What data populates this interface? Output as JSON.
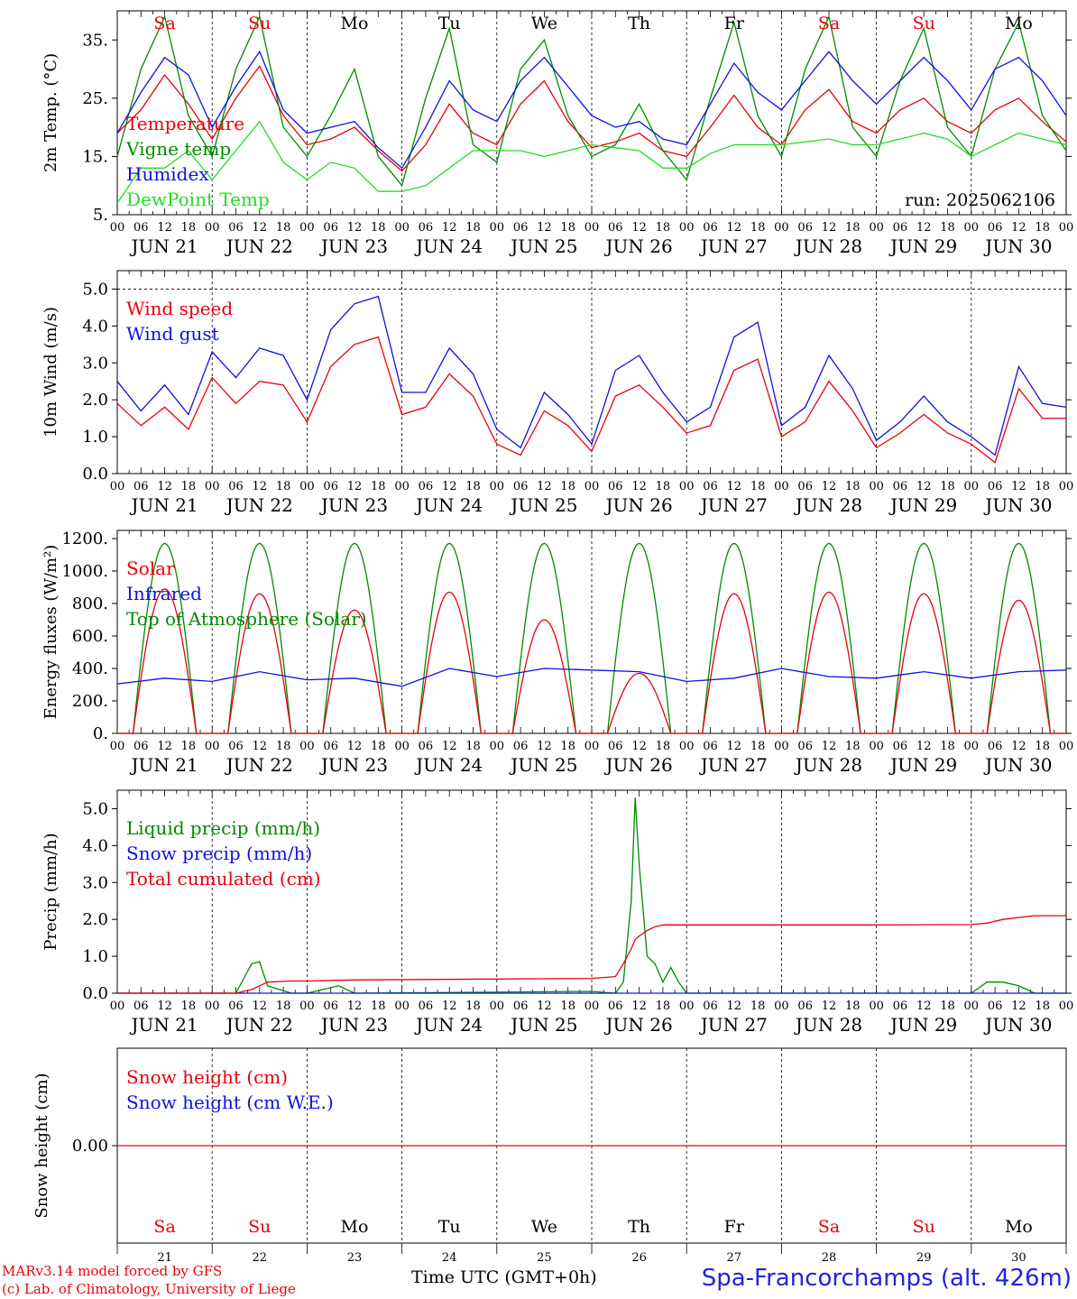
{
  "colors": {
    "red": "#e8000f",
    "green": "#008a00",
    "blue": "#1010e0",
    "lightgreen": "#22dd22",
    "black": "#000000",
    "weekend": "#e8000f"
  },
  "footer": {
    "model": "MARv3.14 model forced by GFS",
    "lab": "(c) Lab. of Climatology, University of Liege",
    "axis_label": "Time UTC (GMT+0h)",
    "station": "Spa-Francorchamps (alt. 426m)"
  },
  "chart_data": [
    {
      "type": "line",
      "ylabel": "2m Temp. (°C)",
      "ylim": [
        5,
        40
      ],
      "yticks": [
        "5.",
        "15.",
        "25.",
        "35."
      ],
      "run_label": "run: 2025062106",
      "x_hours": [
        0,
        6,
        12,
        18,
        24,
        30,
        36,
        42,
        48,
        54,
        60,
        66,
        72,
        78,
        84,
        90,
        96,
        102,
        108,
        114,
        120,
        126,
        132,
        138,
        144,
        150,
        156,
        162,
        168,
        174,
        180,
        186,
        192,
        198,
        204,
        210,
        216,
        222,
        228,
        234,
        240
      ],
      "series": [
        {
          "name": "Temperature",
          "color": "red",
          "values": [
            19,
            23,
            29,
            24,
            18,
            25,
            30.5,
            22,
            17,
            18,
            20,
            16,
            12.5,
            17,
            24,
            19,
            17,
            24,
            28,
            21,
            16.5,
            17.5,
            19,
            16,
            15,
            20,
            25.5,
            20,
            17,
            23,
            26.5,
            21,
            19,
            23,
            25,
            21,
            19,
            23,
            25,
            21,
            17.5
          ]
        },
        {
          "name": "Vigne temp",
          "color": "green",
          "values": [
            15,
            30,
            39,
            22,
            15,
            30,
            39,
            20,
            15,
            22,
            30,
            15,
            10,
            25,
            37,
            17,
            14,
            30,
            35,
            22,
            15,
            17,
            24,
            16,
            11,
            25,
            38,
            22,
            15,
            30,
            39,
            20,
            15,
            28,
            37,
            20,
            15,
            30,
            38,
            22,
            16
          ]
        },
        {
          "name": "Humidex",
          "color": "blue",
          "values": [
            19,
            26,
            32,
            29,
            20,
            27,
            33,
            23,
            19,
            20,
            21,
            16.5,
            13,
            20,
            28,
            23,
            21,
            28,
            32,
            27,
            22,
            20,
            21,
            18,
            17,
            24,
            31,
            26,
            23,
            28,
            33,
            28,
            24,
            28,
            32,
            28,
            23,
            30,
            32,
            28,
            22
          ]
        },
        {
          "name": "DewPoint Temp",
          "color": "lightgreen",
          "values": [
            7,
            13,
            13,
            16,
            11,
            16,
            21,
            14,
            11,
            14,
            13,
            9,
            9,
            10,
            13,
            16,
            16,
            16,
            15,
            16,
            17,
            16.5,
            16,
            13,
            13,
            15.5,
            17,
            17,
            17,
            17.5,
            18,
            17,
            17,
            18,
            19,
            18,
            15,
            17,
            19,
            18,
            17
          ]
        }
      ]
    },
    {
      "type": "line",
      "ylabel": "10m Wind (m/s)",
      "ylim": [
        0,
        5.5
      ],
      "yticks": [
        "0.0",
        "1.0",
        "2.0",
        "3.0",
        "4.0",
        "5.0"
      ],
      "reference_line": 5.0,
      "x_hours": [
        0,
        6,
        12,
        18,
        24,
        30,
        36,
        42,
        48,
        54,
        60,
        66,
        72,
        78,
        84,
        90,
        96,
        102,
        108,
        114,
        120,
        126,
        132,
        138,
        144,
        150,
        156,
        162,
        168,
        174,
        180,
        186,
        192,
        198,
        204,
        210,
        216,
        222,
        228,
        234,
        240
      ],
      "series": [
        {
          "name": "Wind speed",
          "color": "red",
          "values": [
            1.9,
            1.3,
            1.8,
            1.2,
            2.6,
            1.9,
            2.5,
            2.4,
            1.4,
            2.9,
            3.5,
            3.7,
            1.6,
            1.8,
            2.7,
            2.1,
            0.8,
            0.5,
            1.7,
            1.3,
            0.6,
            2.1,
            2.4,
            1.8,
            1.1,
            1.3,
            2.8,
            3.1,
            1.0,
            1.4,
            2.5,
            1.7,
            0.7,
            1.1,
            1.6,
            1.1,
            0.8,
            0.3,
            2.3,
            1.5,
            1.5
          ]
        },
        {
          "name": "Wind gust",
          "color": "blue",
          "values": [
            2.5,
            1.7,
            2.4,
            1.6,
            3.3,
            2.6,
            3.4,
            3.2,
            2.0,
            3.9,
            4.6,
            4.8,
            2.2,
            2.2,
            3.4,
            2.7,
            1.2,
            0.7,
            2.2,
            1.6,
            0.8,
            2.8,
            3.2,
            2.2,
            1.4,
            1.8,
            3.7,
            4.1,
            1.3,
            1.8,
            3.2,
            2.3,
            0.9,
            1.4,
            2.1,
            1.4,
            1.0,
            0.5,
            2.9,
            1.9,
            1.8
          ]
        }
      ]
    },
    {
      "type": "line",
      "ylabel": "Energy fluxes (W/m²)",
      "ylim": [
        0,
        1250
      ],
      "yticks": [
        "0.",
        "200.",
        "400.",
        "600.",
        "800.",
        "1000.",
        "1200."
      ],
      "daily_peaks": {
        "Solar": [
          890,
          860,
          760,
          870,
          700,
          370,
          860,
          870,
          860,
          820
        ],
        "Top of Atmosphere (Solar)": [
          1170,
          1170,
          1170,
          1170,
          1170,
          1170,
          1170,
          1170,
          1170,
          1170
        ]
      },
      "sunrise_hour": 4,
      "sunset_hour": 20,
      "x_hours": [
        0,
        12,
        24,
        36,
        48,
        60,
        72,
        84,
        96,
        108,
        120,
        132,
        144,
        156,
        168,
        180,
        192,
        204,
        216,
        228,
        240
      ],
      "series": [
        {
          "name": "Solar",
          "color": "red"
        },
        {
          "name": "Infrared",
          "color": "blue",
          "values": [
            305,
            340,
            320,
            380,
            330,
            340,
            290,
            400,
            350,
            400,
            390,
            380,
            320,
            340,
            400,
            350,
            340,
            380,
            340,
            380,
            390
          ]
        },
        {
          "name": "Top of Atmosphere (Solar)",
          "color": "green"
        }
      ]
    },
    {
      "type": "line",
      "ylabel": "Precip (mm/h)",
      "ylim": [
        0,
        5.5
      ],
      "yticks": [
        "0.0",
        "1.0",
        "2.0",
        "3.0",
        "4.0",
        "5.0"
      ],
      "x_hours": [
        0,
        24,
        30,
        34,
        36,
        38,
        44,
        48,
        56,
        60,
        120,
        126,
        128,
        130,
        131,
        132,
        134,
        136,
        138,
        140,
        142,
        144,
        168,
        192,
        216,
        220,
        224,
        228,
        232,
        236,
        240
      ],
      "series": [
        {
          "name": "Liquid precip (mm/h)",
          "color": "green",
          "values": [
            0,
            0,
            0,
            0.8,
            0.85,
            0.2,
            0,
            0,
            0.2,
            0,
            0.05,
            0,
            0.3,
            2.5,
            5.3,
            3.5,
            1.0,
            0.8,
            0.3,
            0.7,
            0.3,
            0,
            0,
            0,
            0,
            0.3,
            0.3,
            0.2,
            0,
            0,
            0
          ]
        },
        {
          "name": "Snow precip (mm/h)",
          "color": "blue",
          "values": [
            0,
            0,
            0,
            0,
            0,
            0,
            0,
            0,
            0,
            0,
            0,
            0,
            0,
            0,
            0,
            0,
            0,
            0,
            0,
            0,
            0,
            0,
            0,
            0,
            0,
            0,
            0,
            0,
            0,
            0,
            0
          ]
        },
        {
          "name": "Total cumulated (cm)",
          "color": "red",
          "values": [
            0,
            0,
            0,
            0.1,
            0.2,
            0.3,
            0.33,
            0.33,
            0.35,
            0.36,
            0.4,
            0.45,
            0.8,
            1.2,
            1.45,
            1.55,
            1.7,
            1.8,
            1.85,
            1.85,
            1.85,
            1.85,
            1.85,
            1.85,
            1.86,
            1.9,
            2.0,
            2.05,
            2.1,
            2.1,
            2.1
          ]
        }
      ]
    },
    {
      "type": "line",
      "ylabel": "Snow height (cm)",
      "ytick": "0.00",
      "series": [
        {
          "name": "Snow height (cm)",
          "color": "red",
          "values": [
            0,
            0
          ]
        },
        {
          "name": "Snow height (cm W.E.)",
          "color": "blue",
          "values": [
            0,
            0
          ]
        }
      ]
    }
  ],
  "days": [
    {
      "abbr": "Sa",
      "date": "JUN 21",
      "num": "21",
      "weekend": true
    },
    {
      "abbr": "Su",
      "date": "JUN 22",
      "num": "22",
      "weekend": true
    },
    {
      "abbr": "Mo",
      "date": "JUN 23",
      "num": "23",
      "weekend": false
    },
    {
      "abbr": "Tu",
      "date": "JUN 24",
      "num": "24",
      "weekend": false
    },
    {
      "abbr": "We",
      "date": "JUN 25",
      "num": "25",
      "weekend": false
    },
    {
      "abbr": "Th",
      "date": "JUN 26",
      "num": "26",
      "weekend": false
    },
    {
      "abbr": "Fr",
      "date": "JUN 27",
      "num": "27",
      "weekend": false
    },
    {
      "abbr": "Sa",
      "date": "JUN 28",
      "num": "28",
      "weekend": true
    },
    {
      "abbr": "Su",
      "date": "JUN 29",
      "num": "29",
      "weekend": true
    },
    {
      "abbr": "Mo",
      "date": "JUN 30",
      "num": "30",
      "weekend": false
    }
  ],
  "hour_labels": [
    "00",
    "06",
    "12",
    "18"
  ],
  "end_hour_label": "00"
}
